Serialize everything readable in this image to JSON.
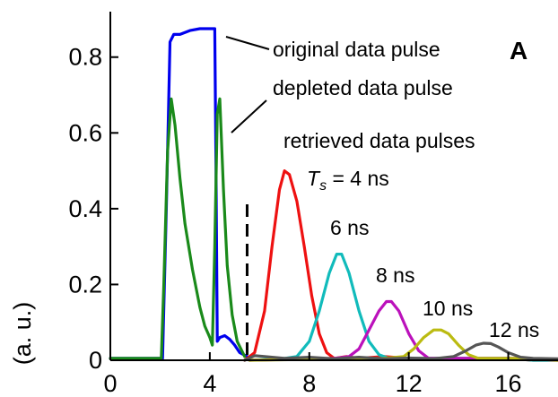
{
  "chart_data": {
    "type": "line",
    "panel_label": "A",
    "ylabel": "(a. u.)",
    "xlim": [
      0,
      18
    ],
    "ylim": [
      0,
      0.92
    ],
    "xticks": [
      0,
      4,
      8,
      12,
      16
    ],
    "xtick_labels": [
      "0",
      "4",
      "8",
      "12",
      "16"
    ],
    "yticks": [
      0,
      0.2,
      0.4,
      0.6,
      0.8
    ],
    "ytick_labels": [
      "0",
      "0.2",
      "0.4",
      "0.6",
      "0.8"
    ],
    "grid": false,
    "storage_marker_x": 5.5,
    "annotations": {
      "original": "original data pulse",
      "depleted": "depleted data pulse",
      "retrieved": "retrieved data pulses",
      "ts_prefix": "T",
      "ts_sub": "s",
      "ts_suffix": " = 4 ns",
      "ns6": "6 ns",
      "ns8": "8 ns",
      "ns10": "10 ns",
      "ns12": "12 ns"
    },
    "series": [
      {
        "key": "original",
        "color": "#0000ee",
        "x": [
          0,
          2.1,
          2.25,
          2.4,
          2.55,
          2.8,
          3.2,
          3.6,
          4.0,
          4.2,
          4.25,
          4.3,
          4.4,
          4.6,
          4.8,
          5.0,
          5.2,
          5.5
        ],
        "y": [
          0.005,
          0.005,
          0.4,
          0.84,
          0.86,
          0.86,
          0.87,
          0.875,
          0.875,
          0.875,
          0.5,
          0.05,
          0.06,
          0.065,
          0.055,
          0.04,
          0.02,
          0.01
        ]
      },
      {
        "key": "depleted",
        "color": "#1a8a1a",
        "x": [
          0,
          2.05,
          2.15,
          2.3,
          2.45,
          2.6,
          2.8,
          3.0,
          3.3,
          3.6,
          3.8,
          4.0,
          4.1,
          4.2,
          4.3,
          4.4,
          4.55,
          4.7,
          4.9,
          5.1,
          5.4
        ],
        "y": [
          0.005,
          0.005,
          0.2,
          0.55,
          0.69,
          0.62,
          0.48,
          0.36,
          0.24,
          0.14,
          0.09,
          0.06,
          0.04,
          0.3,
          0.65,
          0.69,
          0.45,
          0.25,
          0.12,
          0.05,
          0.01
        ]
      },
      {
        "key": "ts4",
        "color": "#ee1111",
        "x": [
          5.4,
          5.8,
          6.2,
          6.5,
          6.8,
          7.0,
          7.2,
          7.5,
          7.8,
          8.1,
          8.4,
          8.7,
          9.0,
          9.5,
          10,
          11,
          12,
          13,
          14,
          15,
          16,
          17,
          18
        ],
        "y": [
          0.0,
          0.02,
          0.13,
          0.3,
          0.45,
          0.5,
          0.49,
          0.42,
          0.3,
          0.17,
          0.07,
          0.02,
          0.005,
          0.01,
          0.005,
          0.01,
          0.005,
          0.005,
          0.005,
          0.005,
          0.005,
          0.0,
          0.0
        ]
      },
      {
        "key": "ts6",
        "color": "#11bbbb",
        "x": [
          5.6,
          7.0,
          7.5,
          8.0,
          8.4,
          8.8,
          9.1,
          9.3,
          9.6,
          10.0,
          10.4,
          10.8,
          11.2,
          12,
          13,
          14,
          15,
          16,
          17,
          18
        ],
        "y": [
          0.0,
          0.005,
          0.01,
          0.05,
          0.13,
          0.23,
          0.28,
          0.28,
          0.23,
          0.13,
          0.05,
          0.015,
          0.005,
          0.005,
          0.005,
          0.005,
          0.005,
          0.005,
          0.0,
          0.0
        ]
      },
      {
        "key": "ts8",
        "color": "#bb11bb",
        "x": [
          5.6,
          9.0,
          9.6,
          10.0,
          10.4,
          10.8,
          11.1,
          11.3,
          11.6,
          12.0,
          12.4,
          12.8,
          13.5,
          14.5,
          15.5,
          16.5,
          18
        ],
        "y": [
          0.0,
          0.005,
          0.01,
          0.03,
          0.08,
          0.13,
          0.155,
          0.155,
          0.13,
          0.07,
          0.025,
          0.005,
          0.005,
          0.005,
          0.005,
          0.005,
          0.0
        ]
      },
      {
        "key": "ts10",
        "color": "#bbbb11",
        "x": [
          5.6,
          11.0,
          11.8,
          12.2,
          12.6,
          13.0,
          13.3,
          13.6,
          14.0,
          14.4,
          14.8,
          15.5,
          16.5,
          18
        ],
        "y": [
          0.0,
          0.005,
          0.01,
          0.03,
          0.06,
          0.08,
          0.08,
          0.07,
          0.04,
          0.015,
          0.005,
          0.005,
          0.005,
          0.0
        ]
      },
      {
        "key": "ts12",
        "color": "#555555",
        "x": [
          5.4,
          5.8,
          6.2,
          7,
          8,
          9,
          10,
          11,
          12,
          13,
          13.8,
          14.3,
          14.7,
          15.0,
          15.3,
          15.6,
          16.0,
          16.5,
          17,
          18
        ],
        "y": [
          0.0,
          0.012,
          0.01,
          0.005,
          0.008,
          0.004,
          0.008,
          0.004,
          0.006,
          0.004,
          0.01,
          0.025,
          0.04,
          0.045,
          0.044,
          0.035,
          0.02,
          0.008,
          0.005,
          0.004
        ]
      }
    ]
  }
}
